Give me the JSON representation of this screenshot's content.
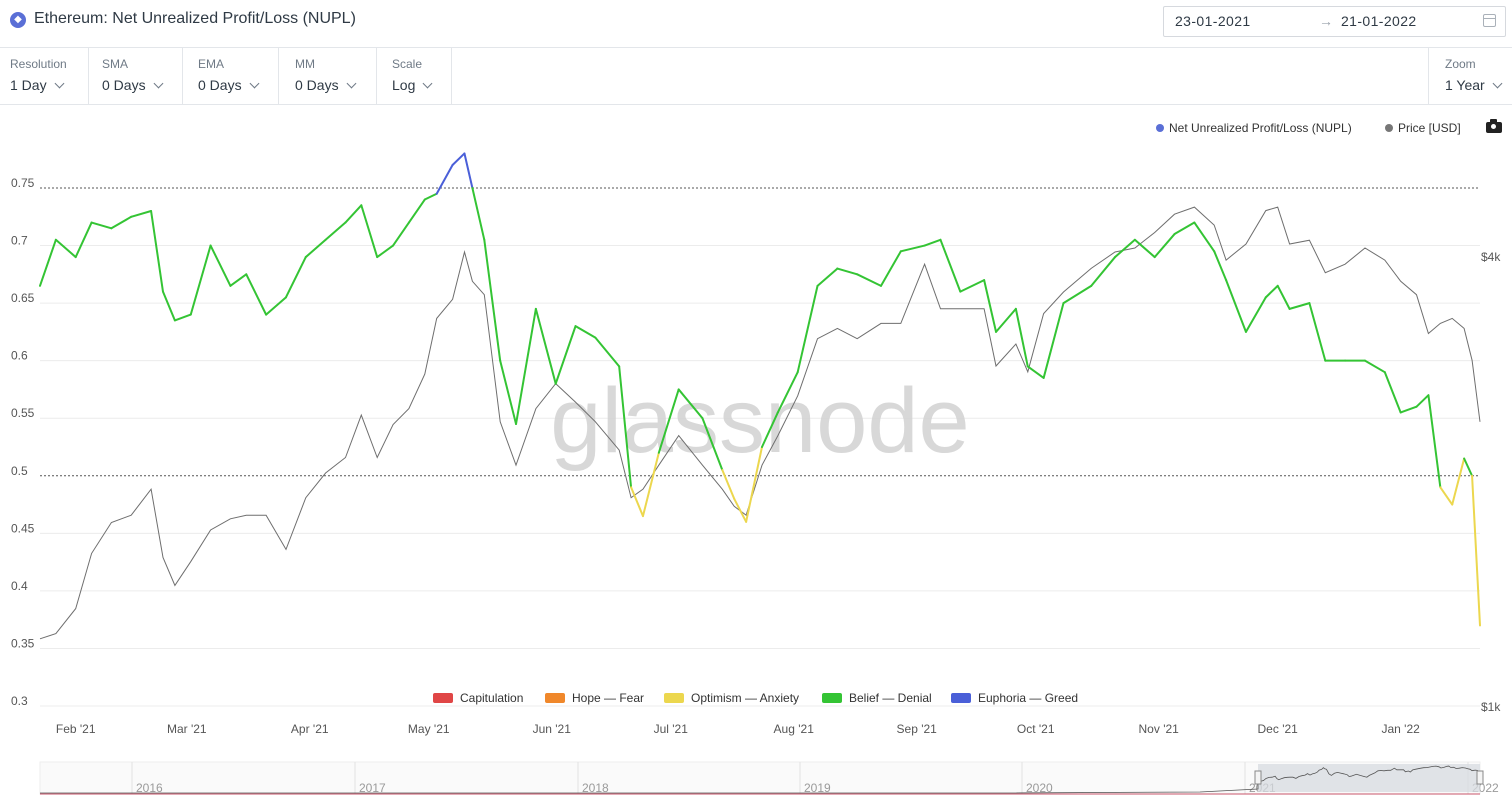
{
  "header": {
    "title": "Ethereum: Net Unrealized Profit/Loss (NUPL)",
    "date_from": "23-01-2021",
    "date_arrow": "→",
    "date_to": "21-01-2022"
  },
  "controls": {
    "resolution": {
      "label": "Resolution",
      "value": "1 Day"
    },
    "sma": {
      "label": "SMA",
      "value": "0 Days"
    },
    "ema": {
      "label": "EMA",
      "value": "0 Days"
    },
    "mm": {
      "label": "MM",
      "value": "0 Days"
    },
    "scale": {
      "label": "Scale",
      "value": "Log"
    },
    "zoom": {
      "label": "Zoom",
      "value": "1 Year"
    }
  },
  "icons": {
    "title": "ethereum-icon",
    "calendar": "calendar-icon",
    "camera": "camera-icon"
  },
  "watermark": "glassnode",
  "chart_data": {
    "type": "line",
    "title": "Ethereum: Net Unrealized Profit/Loss (NUPL)",
    "legend_top": [
      {
        "name": "Net Unrealized Profit/Loss (NUPL)",
        "color": "#5a6fd6"
      },
      {
        "name": "Price [USD]",
        "color": "#777777"
      }
    ],
    "zones": [
      {
        "name": "Capitulation",
        "color": "#e04646"
      },
      {
        "name": "Hope — Fear",
        "color": "#f0882b"
      },
      {
        "name": "Optimism — Anxiety",
        "color": "#ecd74e"
      },
      {
        "name": "Belief — Denial",
        "color": "#34c434"
      },
      {
        "name": "Euphoria — Greed",
        "color": "#4a5fd8"
      }
    ],
    "zone_thresholds": [
      0,
      0.25,
      0.5,
      0.75
    ],
    "y_left": {
      "ticks": [
        "0.3",
        "0.35",
        "0.4",
        "0.45",
        "0.5",
        "0.55",
        "0.6",
        "0.65",
        "0.7",
        "0.75"
      ],
      "range": [
        0.3,
        0.78
      ]
    },
    "y_right": {
      "scale": "log",
      "ticks": [
        "$1k",
        "$4k"
      ],
      "tick_values": [
        1000,
        4000
      ],
      "range": [
        1000,
        4700
      ]
    },
    "x_ticks": [
      "Feb '21",
      "Mar '21",
      "Apr '21",
      "May '21",
      "Jun '21",
      "Jul '21",
      "Aug '21",
      "Sep '21",
      "Oct '21",
      "Nov '21",
      "Dec '21",
      "Jan '22"
    ],
    "x_tick_dates": [
      "2021-02-01",
      "2021-03-01",
      "2021-04-01",
      "2021-05-01",
      "2021-06-01",
      "2021-07-01",
      "2021-08-01",
      "2021-09-01",
      "2021-10-01",
      "2021-11-01",
      "2021-12-01",
      "2022-01-01"
    ],
    "x_range": [
      "2021-01-23",
      "2022-01-21"
    ],
    "grid": true,
    "dotted_levels": [
      0.5,
      0.75
    ],
    "series": [
      {
        "name": "Net Unrealized Profit/Loss (NUPL)",
        "x": [
          "2021-01-23",
          "2021-01-27",
          "2021-02-01",
          "2021-02-05",
          "2021-02-10",
          "2021-02-15",
          "2021-02-20",
          "2021-02-23",
          "2021-02-26",
          "2021-03-02",
          "2021-03-07",
          "2021-03-12",
          "2021-03-16",
          "2021-03-21",
          "2021-03-26",
          "2021-03-31",
          "2021-04-05",
          "2021-04-10",
          "2021-04-14",
          "2021-04-18",
          "2021-04-22",
          "2021-04-26",
          "2021-04-30",
          "2021-05-03",
          "2021-05-07",
          "2021-05-10",
          "2021-05-12",
          "2021-05-15",
          "2021-05-19",
          "2021-05-23",
          "2021-05-28",
          "2021-06-02",
          "2021-06-07",
          "2021-06-12",
          "2021-06-18",
          "2021-06-21",
          "2021-06-24",
          "2021-06-28",
          "2021-07-03",
          "2021-07-09",
          "2021-07-14",
          "2021-07-17",
          "2021-07-20",
          "2021-07-24",
          "2021-07-28",
          "2021-08-02",
          "2021-08-07",
          "2021-08-12",
          "2021-08-17",
          "2021-08-23",
          "2021-08-28",
          "2021-09-03",
          "2021-09-07",
          "2021-09-12",
          "2021-09-18",
          "2021-09-21",
          "2021-09-26",
          "2021-09-29",
          "2021-10-03",
          "2021-10-08",
          "2021-10-15",
          "2021-10-21",
          "2021-10-26",
          "2021-10-31",
          "2021-11-05",
          "2021-11-10",
          "2021-11-15",
          "2021-11-18",
          "2021-11-23",
          "2021-11-28",
          "2021-12-01",
          "2021-12-04",
          "2021-12-09",
          "2021-12-13",
          "2021-12-18",
          "2021-12-23",
          "2021-12-28",
          "2022-01-01",
          "2022-01-05",
          "2022-01-08",
          "2022-01-11",
          "2022-01-14",
          "2022-01-17",
          "2022-01-19",
          "2022-01-21"
        ],
        "y": [
          0.665,
          0.705,
          0.69,
          0.72,
          0.715,
          0.725,
          0.73,
          0.66,
          0.635,
          0.64,
          0.7,
          0.665,
          0.675,
          0.64,
          0.655,
          0.69,
          0.705,
          0.72,
          0.735,
          0.69,
          0.7,
          0.72,
          0.74,
          0.745,
          0.77,
          0.78,
          0.75,
          0.705,
          0.6,
          0.545,
          0.645,
          0.58,
          0.63,
          0.62,
          0.595,
          0.49,
          0.465,
          0.52,
          0.575,
          0.55,
          0.505,
          0.48,
          0.46,
          0.525,
          0.555,
          0.59,
          0.665,
          0.68,
          0.675,
          0.665,
          0.695,
          0.7,
          0.705,
          0.66,
          0.67,
          0.625,
          0.645,
          0.595,
          0.585,
          0.65,
          0.665,
          0.69,
          0.705,
          0.69,
          0.71,
          0.72,
          0.695,
          0.67,
          0.625,
          0.655,
          0.665,
          0.645,
          0.65,
          0.6,
          0.6,
          0.6,
          0.59,
          0.555,
          0.56,
          0.57,
          0.49,
          0.475,
          0.515,
          0.5,
          0.37
        ]
      },
      {
        "name": "Price [USD]",
        "x": [
          "2021-01-23",
          "2021-01-27",
          "2021-02-01",
          "2021-02-05",
          "2021-02-10",
          "2021-02-15",
          "2021-02-20",
          "2021-02-23",
          "2021-02-26",
          "2021-03-02",
          "2021-03-07",
          "2021-03-12",
          "2021-03-16",
          "2021-03-21",
          "2021-03-26",
          "2021-03-31",
          "2021-04-05",
          "2021-04-10",
          "2021-04-14",
          "2021-04-18",
          "2021-04-22",
          "2021-04-26",
          "2021-04-30",
          "2021-05-03",
          "2021-05-07",
          "2021-05-10",
          "2021-05-12",
          "2021-05-15",
          "2021-05-19",
          "2021-05-23",
          "2021-05-28",
          "2021-06-02",
          "2021-06-07",
          "2021-06-12",
          "2021-06-18",
          "2021-06-21",
          "2021-06-24",
          "2021-06-28",
          "2021-07-03",
          "2021-07-09",
          "2021-07-14",
          "2021-07-17",
          "2021-07-20",
          "2021-07-24",
          "2021-07-28",
          "2021-08-02",
          "2021-08-07",
          "2021-08-12",
          "2021-08-17",
          "2021-08-23",
          "2021-08-28",
          "2021-09-03",
          "2021-09-07",
          "2021-09-12",
          "2021-09-18",
          "2021-09-21",
          "2021-09-26",
          "2021-09-29",
          "2021-10-03",
          "2021-10-08",
          "2021-10-15",
          "2021-10-21",
          "2021-10-26",
          "2021-10-31",
          "2021-11-05",
          "2021-11-10",
          "2021-11-15",
          "2021-11-18",
          "2021-11-23",
          "2021-11-28",
          "2021-12-01",
          "2021-12-04",
          "2021-12-09",
          "2021-12-13",
          "2021-12-18",
          "2021-12-23",
          "2021-12-28",
          "2022-01-01",
          "2022-01-05",
          "2022-01-08",
          "2022-01-11",
          "2022-01-14",
          "2022-01-17",
          "2022-01-19",
          "2022-01-21"
        ],
        "y": [
          1230,
          1250,
          1350,
          1600,
          1760,
          1800,
          1950,
          1580,
          1450,
          1560,
          1720,
          1780,
          1800,
          1800,
          1620,
          1900,
          2050,
          2150,
          2450,
          2150,
          2380,
          2500,
          2780,
          3300,
          3500,
          4050,
          3700,
          3550,
          2400,
          2100,
          2500,
          2700,
          2550,
          2400,
          2200,
          1900,
          1950,
          2100,
          2300,
          2100,
          1950,
          1850,
          1800,
          2100,
          2300,
          2600,
          3100,
          3200,
          3100,
          3250,
          3250,
          3900,
          3400,
          3400,
          3400,
          2850,
          3050,
          2800,
          3350,
          3580,
          3850,
          4050,
          4100,
          4300,
          4550,
          4650,
          4400,
          3950,
          4150,
          4600,
          4650,
          4150,
          4200,
          3800,
          3900,
          4100,
          3950,
          3700,
          3550,
          3150,
          3250,
          3300,
          3200,
          2900,
          2400
        ]
      }
    ]
  },
  "navigator": {
    "labels": [
      "2016",
      "2017",
      "2018",
      "2019",
      "2020",
      "2021",
      "2022"
    ]
  }
}
